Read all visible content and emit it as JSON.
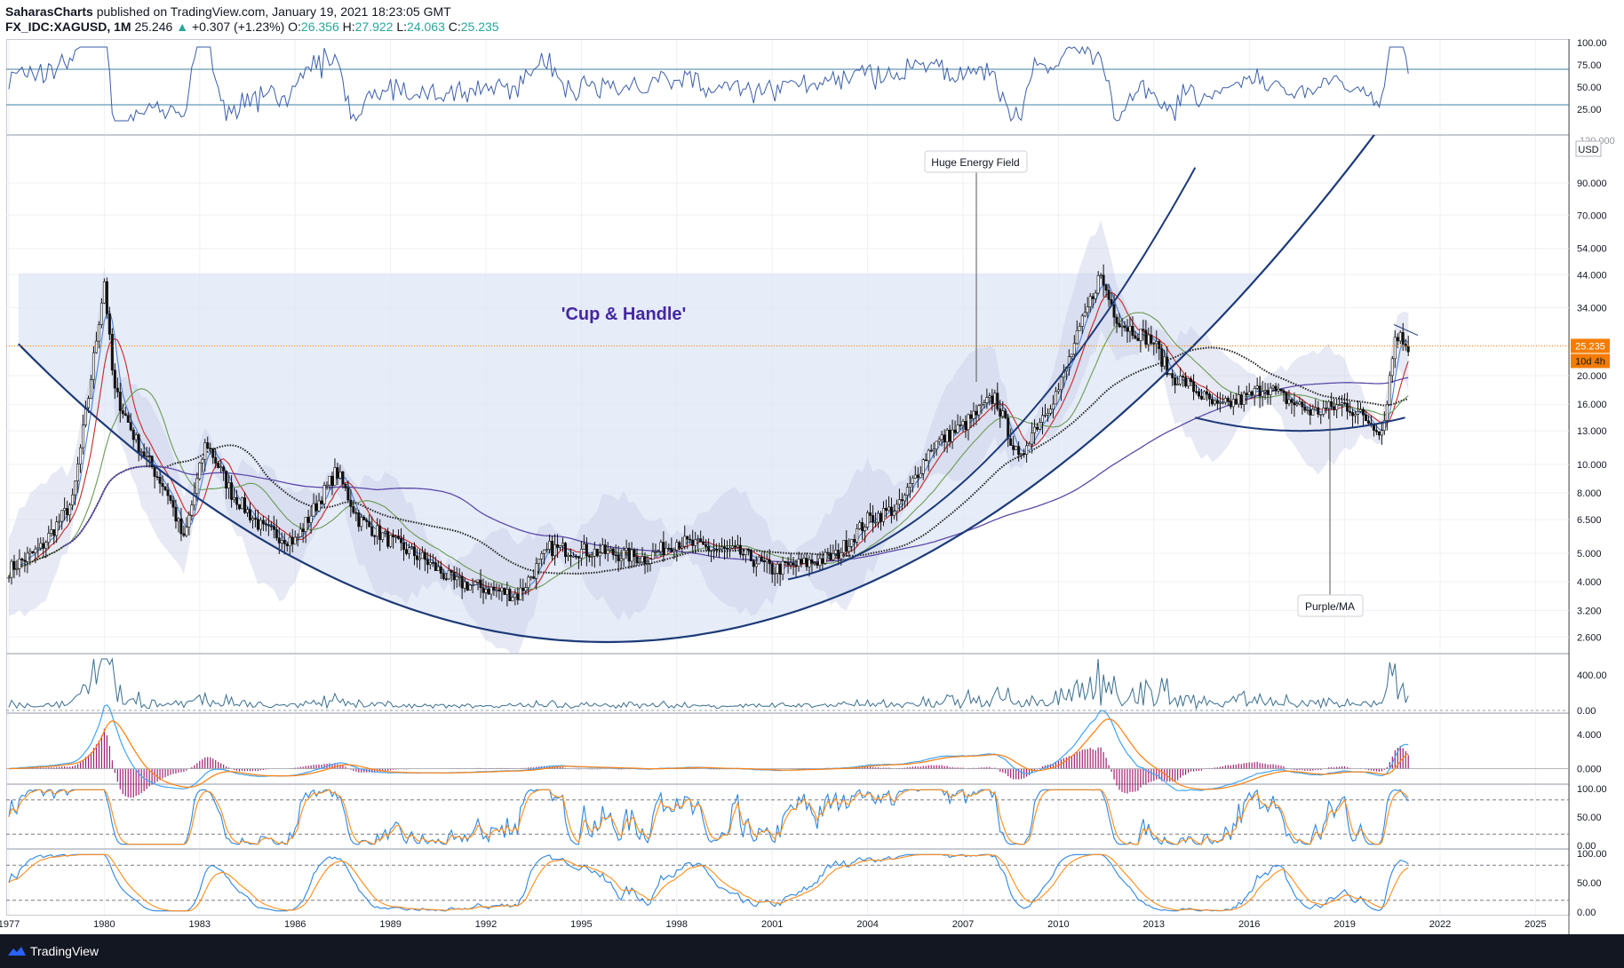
{
  "header": {
    "author": "SaharasCharts",
    "published": "published on TradingView.com, January 19, 2021 18:23:05 GMT",
    "symbol": "FX_IDC:XAGUSD, 1M",
    "last": "25.246",
    "change": "+0.307 (+1.23%)",
    "o_label": "O:",
    "o_value": "26.356",
    "h_label": "H:",
    "h_value": "27.922",
    "l_label": "L:",
    "l_value": "24.063",
    "c_label": "C:",
    "c_value": "25.235",
    "up_glyph": "▲"
  },
  "footer": {
    "brand": "TradingView"
  },
  "colors": {
    "rsi_line": "#3b5ea8",
    "candles": "#111111",
    "ma_blue": "#4a7fd6",
    "ma_red": "#c62828",
    "ma_green": "#6a9a55",
    "ma_black": "#222222",
    "ma_purple": "#5b4aa8",
    "cup_curve": "#1c3a78",
    "fill": "#dde6f6",
    "price_badge": "#f57c00",
    "macd_blue": "#42a5f5",
    "macd_orange": "#ff7f0e",
    "stoch_blue": "#2e86de",
    "stoch_orange": "#ff8c1a"
  },
  "chart_data": [
    {
      "type": "line",
      "panel": "rsi",
      "y_ticks": [
        "100.00",
        "75.00",
        "50.00",
        "25.00"
      ],
      "ylim": [
        0,
        100
      ],
      "levels": [
        70,
        30
      ]
    },
    {
      "type": "candlestick",
      "panel": "price",
      "currency": "USD",
      "scale": "log",
      "ylim": [
        2.3,
        130
      ],
      "y_ticks": [
        "90.000",
        "70.000",
        "54.000",
        "44.000",
        "34.000",
        "20.000",
        "16.000",
        "13.000",
        "10.000",
        "8.000",
        "6.500",
        "5.000",
        "4.000",
        "3.200",
        "2.600"
      ],
      "top_tick": "120.000",
      "x_ticks": [
        "1977",
        "1980",
        "1983",
        "1986",
        "1989",
        "1992",
        "1995",
        "1998",
        "2001",
        "2004",
        "2007",
        "2010",
        "2013",
        "2016",
        "2019",
        "2022",
        "2025"
      ],
      "last_price": "25.235",
      "countdown": "10d 4h",
      "annotations": [
        "'Cup & Handle'",
        "Huge Energy Field",
        "Purple/MA"
      ],
      "series": [
        {
          "x": [
            1977,
            1978,
            1979,
            1979.5,
            1980.0,
            1980.3,
            1981,
            1982,
            1982.5,
            1983.2,
            1984,
            1985,
            1986,
            1987.3,
            1988,
            1989,
            1990,
            1991,
            1992,
            1993,
            1994,
            1995,
            1996,
            1997,
            1998,
            1999,
            2000,
            2001,
            2002,
            2003,
            2004,
            2005,
            2006,
            2007,
            2008,
            2008.8,
            2009,
            2010,
            2011.3,
            2011.8,
            2012,
            2013,
            2013.5,
            2014,
            2015,
            2016,
            2016.5,
            2017,
            2018,
            2019,
            2020.2,
            2020.6,
            2021
          ],
          "values": [
            4.4,
            5.2,
            7.5,
            17,
            42,
            18,
            12,
            8,
            5.5,
            12,
            8,
            6,
            5.5,
            9.5,
            6.5,
            5.5,
            4.8,
            4.0,
            3.8,
            3.6,
            5.2,
            5.1,
            5.0,
            4.8,
            5.5,
            5.2,
            5.0,
            4.4,
            4.6,
            4.9,
            6.5,
            7.2,
            11.5,
            13.5,
            17,
            10,
            12,
            18,
            44,
            32,
            30,
            26,
            20,
            19,
            15.5,
            17,
            18.5,
            17,
            15,
            16,
            13,
            28,
            25.2
          ]
        }
      ]
    },
    {
      "type": "area",
      "panel": "volatility",
      "y_ticks": [
        "400.00",
        "0.00"
      ],
      "ylim": [
        0,
        600
      ]
    },
    {
      "type": "line",
      "panel": "macd",
      "y_ticks": [
        "4.000",
        "0.000"
      ],
      "ylim": [
        -1.5,
        6
      ]
    },
    {
      "type": "line",
      "panel": "stochastic",
      "y_ticks": [
        "100.00",
        "50.00",
        "0.00"
      ],
      "ylim": [
        0,
        100
      ],
      "levels": [
        80,
        20
      ]
    },
    {
      "type": "line",
      "panel": "stochastic_rsi",
      "y_ticks": [
        "100.00",
        "50.00",
        "0.00"
      ],
      "ylim": [
        0,
        100
      ],
      "levels": [
        80,
        20
      ]
    }
  ]
}
